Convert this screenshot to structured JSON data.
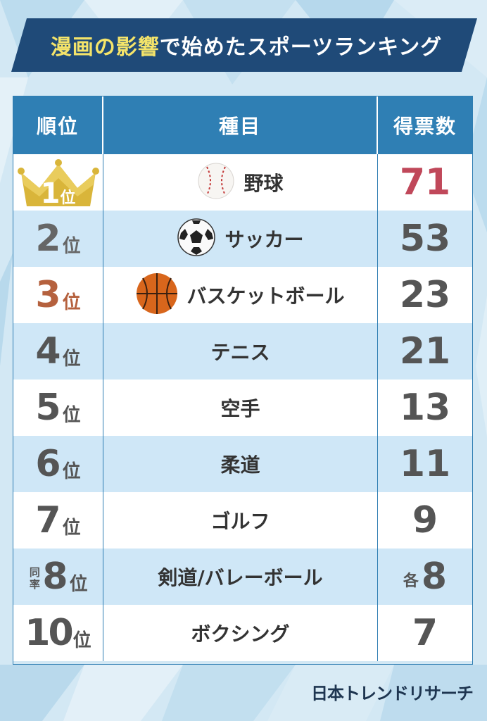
{
  "title": {
    "highlight": "漫画の影響",
    "rest": "で始めたスポーツランキング"
  },
  "table": {
    "headers": {
      "rank": "順位",
      "sport": "種目",
      "votes": "得票数"
    },
    "rank_unit": "位",
    "tie_label": "同率",
    "each_label": "各",
    "rows": [
      {
        "rank": "1",
        "sport": "野球",
        "votes": "71",
        "icon": "baseball-icon"
      },
      {
        "rank": "2",
        "sport": "サッカー",
        "votes": "53",
        "icon": "soccer-ball-icon"
      },
      {
        "rank": "3",
        "sport": "バスケットボール",
        "votes": "23",
        "icon": "basketball-icon"
      },
      {
        "rank": "4",
        "sport": "テニス",
        "votes": "21"
      },
      {
        "rank": "5",
        "sport": "空手",
        "votes": "13"
      },
      {
        "rank": "6",
        "sport": "柔道",
        "votes": "11"
      },
      {
        "rank": "7",
        "sport": "ゴルフ",
        "votes": "9"
      },
      {
        "rank": "8",
        "sport": "剣道/バレーボール",
        "votes": "8"
      },
      {
        "rank": "10",
        "sport": "ボクシング",
        "votes": "7"
      }
    ]
  },
  "credit": "日本トレンドリサーチ",
  "colors": {
    "header_blue": "#2f7fb4",
    "banner_navy": "#1f4a78",
    "title_highlight": "#f4e46a",
    "first_votes": "#c0485a",
    "gold": "#d9b53a",
    "bronze": "#b5613e",
    "row_blue": "#cfe7f7"
  }
}
